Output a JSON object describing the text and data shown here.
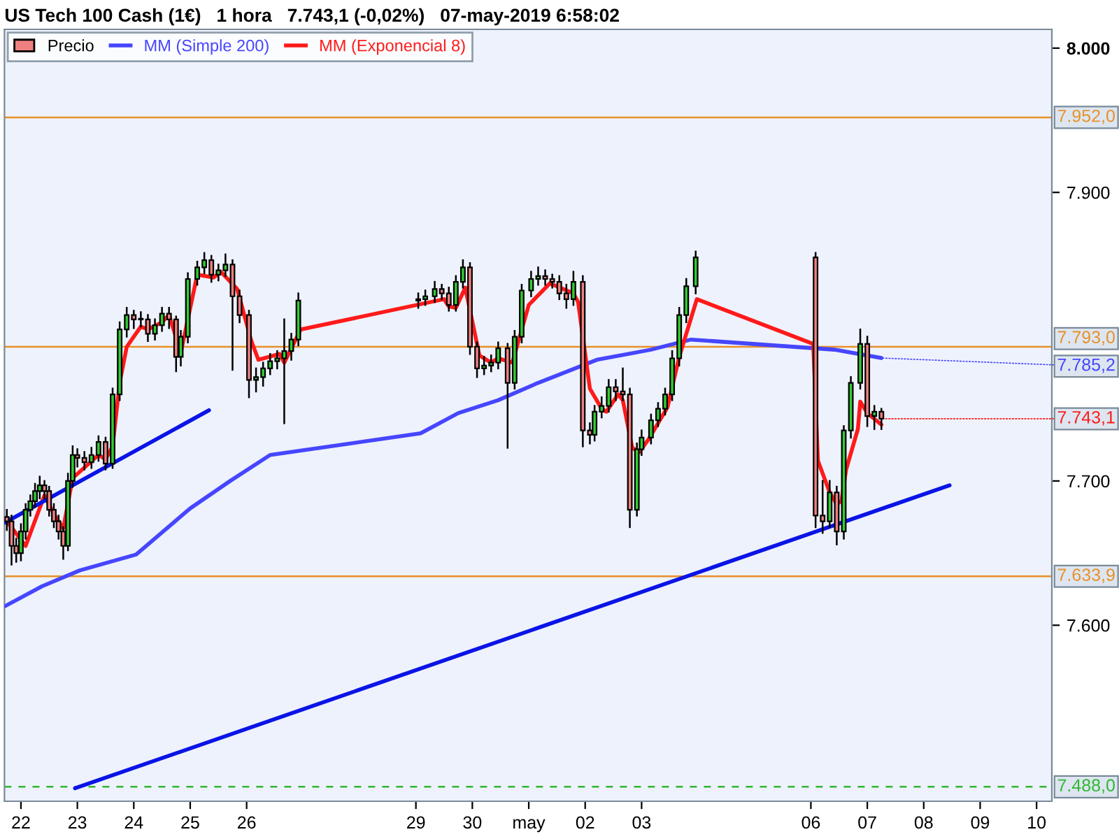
{
  "chart_data": {
    "type": "candlestick",
    "title": "US Tech 100 Cash (1€)   1 hora   7.743,1 (-0,02%)   07-may-2019 6:58:02",
    "xlim": [
      "2019-04-21T17:00",
      "2019-05-10T06:30"
    ],
    "ylim": [
      7478,
      8013
    ],
    "xticks": [
      {
        "value": "2019-04-22",
        "label": "22"
      },
      {
        "value": "2019-04-23",
        "label": "23"
      },
      {
        "value": "2019-04-24",
        "label": "24"
      },
      {
        "value": "2019-04-25",
        "label": "25"
      },
      {
        "value": "2019-04-26",
        "label": "26"
      },
      {
        "value": "2019-04-29",
        "label": "29"
      },
      {
        "value": "2019-04-30",
        "label": "30"
      },
      {
        "value": "2019-05-01",
        "label": "may"
      },
      {
        "value": "2019-05-02",
        "label": "02"
      },
      {
        "value": "2019-05-03",
        "label": "03"
      },
      {
        "value": "2019-05-06",
        "label": "06"
      },
      {
        "value": "2019-05-07",
        "label": "07"
      },
      {
        "value": "2019-05-08",
        "label": "08"
      },
      {
        "value": "2019-05-09",
        "label": "09"
      },
      {
        "value": "2019-05-10",
        "label": "10"
      }
    ],
    "yticks": [
      {
        "value": 8000,
        "label": "8.000"
      },
      {
        "value": 7900,
        "label": "7.900"
      },
      {
        "value": 7700,
        "label": "7.700"
      },
      {
        "value": 7600,
        "label": "7.600"
      }
    ],
    "grid": false,
    "legend": "top left",
    "series": [
      {
        "name": "Precio",
        "colors": [
          "#f08080",
          "#f08080",
          "#f08080",
          "#33cc33",
          "#33cc33",
          "#33cc33",
          "#33cc33",
          "#33cc33",
          "#f08080",
          "#f08080",
          "#f08080",
          "#f08080",
          "#f08080",
          "#33cc33",
          "#33cc33",
          "#f08080",
          "#f08080",
          "#33cc33",
          "#33cc33",
          "#f08080",
          "#33cc33",
          "#33cc33",
          "#33cc33",
          "#f08080",
          "#33cc33",
          "#f08080",
          "#33cc33",
          "#33cc33",
          "#f08080",
          "#f08080",
          "#33cc33",
          "#33cc33",
          "#33cc33",
          "#33cc33",
          "#f08080",
          "#33cc33",
          "#33cc33",
          "#f08080",
          "#f08080",
          "#f08080",
          "#33cc33",
          "#33cc33",
          "#33cc33",
          "#33cc33",
          "#33cc33",
          "#33cc33",
          "#33cc33",
          "#33cc33",
          "#33cc33",
          "#33cc33",
          "#f08080",
          "#f08080",
          "#33cc33",
          "#33cc33",
          "#f08080",
          "#f08080",
          "#33cc33",
          "#33cc33",
          "#33cc33",
          "#f08080",
          "#33cc33",
          "#33cc33",
          "#33cc33",
          "#33cc33",
          "#f08080",
          "#f08080",
          "#f08080",
          "#f08080",
          "#33cc33",
          "#f08080",
          "#f08080",
          "#33cc33",
          "#33cc33",
          "#33cc33",
          "#f08080",
          "#f08080",
          "#f08080",
          "#33cc33",
          "#33cc33",
          "#33cc33",
          "#33cc33",
          "#33cc33",
          "#33cc33",
          "#33cc33",
          "#33cc33",
          "#33cc33",
          "#f08080",
          "#f08080",
          "#33cc33",
          "#f08080",
          "#33cc33",
          "#33cc33",
          "#33cc33",
          "#f08080",
          "#33cc33",
          "#f08080"
        ],
        "x": [
          "2019-04-21T18:00",
          "2019-04-21T20:00",
          "2019-04-21T22:00",
          "2019-04-22T00:00",
          "2019-04-22T02:00",
          "2019-04-22T04:00",
          "2019-04-22T06:00",
          "2019-04-22T08:00",
          "2019-04-22T10:00",
          "2019-04-22T12:00",
          "2019-04-22T14:00",
          "2019-04-22T16:00",
          "2019-04-22T18:00",
          "2019-04-22T20:00",
          "2019-04-22T22:00",
          "2019-04-23T00:00",
          "2019-04-23T03:00",
          "2019-04-23T06:00",
          "2019-04-23T09:00",
          "2019-04-23T12:00",
          "2019-04-23T15:00",
          "2019-04-23T18:00",
          "2019-04-23T21:00",
          "2019-04-24T00:00",
          "2019-04-24T03:00",
          "2019-04-24T06:00",
          "2019-04-24T09:00",
          "2019-04-24T12:00",
          "2019-04-24T15:00",
          "2019-04-24T18:00",
          "2019-04-24T20:00",
          "2019-04-24T23:00",
          "2019-04-25T03:00",
          "2019-04-25T06:00",
          "2019-04-25T09:00",
          "2019-04-25T12:00",
          "2019-04-25T15:00",
          "2019-04-25T18:00",
          "2019-04-25T21:00",
          "2019-04-26T01:00",
          "2019-04-26T04:00",
          "2019-04-26T07:00",
          "2019-04-26T10:00",
          "2019-04-26T13:00",
          "2019-04-26T16:00",
          "2019-04-26T19:00",
          "2019-04-26T22:00",
          "2019-04-29T01:00",
          "2019-04-29T04:00",
          "2019-04-29T08:00",
          "2019-04-29T11:00",
          "2019-04-29T14:00",
          "2019-04-29T17:00",
          "2019-04-29T20:00",
          "2019-04-29T23:00",
          "2019-04-30T02:00",
          "2019-04-30T05:00",
          "2019-04-30T08:00",
          "2019-04-30T11:00",
          "2019-04-30T15:00",
          "2019-04-30T18:00",
          "2019-04-30T21:00",
          "2019-05-01T01:00",
          "2019-05-01T04:00",
          "2019-05-01T07:00",
          "2019-05-01T10:00",
          "2019-05-01T13:00",
          "2019-05-01T16:00",
          "2019-05-01T19:00",
          "2019-05-01T23:00",
          "2019-05-02T02:00",
          "2019-05-02T04:00",
          "2019-05-02T07:00",
          "2019-05-02T10:00",
          "2019-05-02T13:00",
          "2019-05-02T16:00",
          "2019-05-02T19:00",
          "2019-05-02T22:00",
          "2019-05-03T00:00",
          "2019-05-03T04:00",
          "2019-05-03T07:00",
          "2019-05-03T10:00",
          "2019-05-03T13:00",
          "2019-05-03T16:00",
          "2019-05-03T19:00",
          "2019-05-03T23:00",
          "2019-05-06T02:00",
          "2019-05-06T05:00",
          "2019-05-06T08:00",
          "2019-05-06T11:00",
          "2019-05-06T14:00",
          "2019-05-06T17:00",
          "2019-05-06T21:00",
          "2019-05-07T00:00",
          "2019-05-07T03:00",
          "2019-05-07T06:00"
        ],
        "ohlc": [
          [
            7675,
            7680,
            7666,
            7672
          ],
          [
            7672,
            7676,
            7642,
            7655
          ],
          [
            7655,
            7660,
            7644,
            7650
          ],
          [
            7650,
            7670,
            7645,
            7665
          ],
          [
            7665,
            7684,
            7660,
            7680
          ],
          [
            7680,
            7690,
            7676,
            7686
          ],
          [
            7686,
            7698,
            7682,
            7693
          ],
          [
            7693,
            7703,
            7688,
            7697
          ],
          [
            7697,
            7700,
            7688,
            7693
          ],
          [
            7693,
            7696,
            7676,
            7680
          ],
          [
            7680,
            7684,
            7668,
            7672
          ],
          [
            7672,
            7676,
            7660,
            7665
          ],
          [
            7665,
            7668,
            7646,
            7655
          ],
          [
            7655,
            7705,
            7652,
            7700
          ],
          [
            7700,
            7724,
            7696,
            7718
          ],
          [
            7718,
            7722,
            7710,
            7716
          ],
          [
            7716,
            7720,
            7708,
            7713
          ],
          [
            7713,
            7723,
            7709,
            7718
          ],
          [
            7718,
            7731,
            7714,
            7727
          ],
          [
            7727,
            7730,
            7708,
            7712
          ],
          [
            7712,
            7764,
            7709,
            7760
          ],
          [
            7760,
            7810,
            7756,
            7805
          ],
          [
            7805,
            7820,
            7800,
            7815
          ],
          [
            7815,
            7818,
            7806,
            7812
          ],
          [
            7812,
            7817,
            7807,
            7812
          ],
          [
            7812,
            7815,
            7797,
            7802
          ],
          [
            7802,
            7812,
            7798,
            7808
          ],
          [
            7808,
            7820,
            7804,
            7816
          ],
          [
            7816,
            7820,
            7806,
            7812
          ],
          [
            7812,
            7814,
            7776,
            7786
          ],
          [
            7786,
            7804,
            7780,
            7800
          ],
          [
            7800,
            7844,
            7796,
            7840
          ],
          [
            7840,
            7852,
            7836,
            7848
          ],
          [
            7848,
            7858,
            7844,
            7853
          ],
          [
            7853,
            7856,
            7838,
            7843
          ],
          [
            7843,
            7850,
            7839,
            7846
          ],
          [
            7846,
            7857,
            7842,
            7850
          ],
          [
            7850,
            7853,
            7777,
            7828
          ],
          [
            7828,
            7832,
            7810,
            7815
          ],
          [
            7815,
            7818,
            7758,
            7770
          ],
          [
            7770,
            7778,
            7762,
            7772
          ],
          [
            7772,
            7782,
            7766,
            7778
          ],
          [
            7778,
            7788,
            7774,
            7783
          ],
          [
            7783,
            7790,
            7778,
            7785
          ],
          [
            7785,
            7812,
            7740,
            7790
          ],
          [
            7790,
            7802,
            7784,
            7798
          ],
          [
            7798,
            7830,
            7794,
            7825
          ],
          [
            7825,
            7830,
            7820,
            7826
          ],
          [
            7826,
            7832,
            7822,
            7828
          ],
          [
            7828,
            7838,
            7824,
            7833
          ],
          [
            7833,
            7836,
            7826,
            7830
          ],
          [
            7830,
            7834,
            7818,
            7822
          ],
          [
            7822,
            7842,
            7818,
            7838
          ],
          [
            7838,
            7853,
            7834,
            7848
          ],
          [
            7848,
            7851,
            7788,
            7793
          ],
          [
            7793,
            7796,
            7772,
            7778
          ],
          [
            7778,
            7786,
            7774,
            7780
          ],
          [
            7780,
            7787,
            7776,
            7782
          ],
          [
            7782,
            7796,
            7778,
            7792
          ],
          [
            7792,
            7795,
            7723,
            7768
          ],
          [
            7768,
            7804,
            7764,
            7800
          ],
          [
            7800,
            7836,
            7796,
            7832
          ],
          [
            7832,
            7845,
            7828,
            7840
          ],
          [
            7840,
            7848,
            7836,
            7842
          ],
          [
            7842,
            7846,
            7836,
            7840
          ],
          [
            7840,
            7843,
            7834,
            7838
          ],
          [
            7838,
            7842,
            7826,
            7830
          ],
          [
            7830,
            7836,
            7820,
            7826
          ],
          [
            7826,
            7845,
            7822,
            7838
          ],
          [
            7838,
            7842,
            7724,
            7735
          ],
          [
            7735,
            7740,
            7726,
            7732
          ],
          [
            7732,
            7752,
            7728,
            7748
          ],
          [
            7748,
            7758,
            7744,
            7752
          ],
          [
            7752,
            7770,
            7748,
            7765
          ],
          [
            7765,
            7770,
            7756,
            7762
          ],
          [
            7762,
            7778,
            7756,
            7760
          ],
          [
            7760,
            7764,
            7668,
            7680
          ],
          [
            7680,
            7726,
            7676,
            7722
          ],
          [
            7722,
            7735,
            7718,
            7730
          ],
          [
            7730,
            7746,
            7726,
            7742
          ],
          [
            7742,
            7754,
            7738,
            7750
          ],
          [
            7750,
            7764,
            7746,
            7760
          ],
          [
            7760,
            7790,
            7756,
            7785
          ],
          [
            7785,
            7820,
            7780,
            7815
          ],
          [
            7815,
            7840,
            7810,
            7835
          ],
          [
            7835,
            7859,
            7830,
            7855
          ],
          [
            7855,
            7858,
            7668,
            7676
          ],
          [
            7676,
            7700,
            7664,
            7672
          ],
          [
            7672,
            7700,
            7668,
            7692
          ],
          [
            7692,
            7696,
            7656,
            7665
          ],
          [
            7665,
            7738,
            7660,
            7735
          ],
          [
            7735,
            7772,
            7730,
            7768
          ],
          [
            7768,
            7805,
            7764,
            7795
          ],
          [
            7795,
            7800,
            7738,
            7745
          ],
          [
            7745,
            7752,
            7736,
            7748
          ],
          [
            7748,
            7750,
            7736,
            7743.1
          ]
        ]
      },
      {
        "name": "MM (Simple 200)",
        "type": "line",
        "color": "#4646ff",
        "x": [
          "2019-04-21T17:00",
          "2019-04-22T09:00",
          "2019-04-23T01:00",
          "2019-04-24T01:00",
          "2019-04-25T00:00",
          "2019-04-25T17:00",
          "2019-04-26T10:00",
          "2019-04-29T02:00",
          "2019-04-29T18:00",
          "2019-04-30T11:00",
          "2019-05-01T04:00",
          "2019-05-02T05:00",
          "2019-05-03T04:00",
          "2019-05-03T21:00",
          "2019-05-06T10:00",
          "2019-05-07T06:00"
        ],
        "values": [
          7613,
          7627,
          7638,
          7649,
          7681,
          7700,
          7718,
          7733,
          7747,
          7756,
          7768,
          7784,
          7791,
          7798,
          7791,
          7785.2
        ]
      },
      {
        "name": "MM (Exponencial 8)",
        "type": "line",
        "color": "#ff1a1a",
        "x": [
          "2019-04-21T18:00",
          "2019-04-22T02:00",
          "2019-04-22T10:00",
          "2019-04-22T14:00",
          "2019-04-22T18:00",
          "2019-04-22T22:00",
          "2019-04-23T09:00",
          "2019-04-23T12:00",
          "2019-04-23T15:00",
          "2019-04-23T18:00",
          "2019-04-23T21:00",
          "2019-04-24T03:00",
          "2019-04-24T06:00",
          "2019-04-24T12:00",
          "2019-04-24T15:00",
          "2019-04-24T20:00",
          "2019-04-25T03:00",
          "2019-04-25T10:00",
          "2019-04-25T13:00",
          "2019-04-25T20:00",
          "2019-04-26T02:00",
          "2019-04-26T05:00",
          "2019-04-26T14:00",
          "2019-04-26T16:00",
          "2019-04-26T23:00",
          "2019-04-29T12:00",
          "2019-04-29T14:00",
          "2019-04-29T17:00",
          "2019-04-29T21:00",
          "2019-04-30T03:00",
          "2019-04-30T08:00",
          "2019-04-30T11:00",
          "2019-04-30T17:00",
          "2019-05-01T00:00",
          "2019-05-01T09:00",
          "2019-05-01T19:00",
          "2019-05-01T21:00",
          "2019-05-02T02:00",
          "2019-05-02T07:00",
          "2019-05-02T09:00",
          "2019-05-02T14:00",
          "2019-05-02T16:00",
          "2019-05-02T20:00",
          "2019-05-02T23:00",
          "2019-05-03T03:00",
          "2019-05-03T11:00",
          "2019-05-03T16:00",
          "2019-05-03T23:30",
          "2019-05-06T01:00",
          "2019-05-06T03:00",
          "2019-05-06T08:00",
          "2019-05-06T11:00",
          "2019-05-06T13:00",
          "2019-05-06T15:00",
          "2019-05-06T20:00",
          "2019-05-06T21:00",
          "2019-05-07T00:00",
          "2019-05-07T06:00"
        ],
        "values": [
          7672,
          7655,
          7690,
          7677,
          7667,
          7702,
          7718,
          7715,
          7724,
          7768,
          7793,
          7807,
          7805,
          7810,
          7815,
          7789,
          7843,
          7841,
          7845,
          7833,
          7797,
          7784,
          7788,
          7782,
          7805,
          7826,
          7821,
          7820,
          7834,
          7787,
          7782,
          7785,
          7782,
          7822,
          7837,
          7830,
          7824,
          7764,
          7750,
          7748,
          7760,
          7756,
          7723,
          7720,
          7729,
          7751,
          7786,
          7826,
          7795,
          7714,
          7692,
          7684,
          7686,
          7708,
          7736,
          7755,
          7747,
          7739
        ]
      },
      {
        "type": "line",
        "color": "#0a14e6",
        "x": [
          "2019-04-21T17:00",
          "2019-04-25T08:00"
        ],
        "values": [
          7671,
          7749
        ]
      },
      {
        "type": "line",
        "color": "#0a14e6",
        "x": [
          "2019-04-22T23:00",
          "2019-05-08T11:00"
        ],
        "values": [
          7487,
          7697
        ]
      }
    ],
    "ref_lines": [
      {
        "axis": "y",
        "value": 7952.0,
        "label": "7.952,0",
        "color": "#e8902a"
      },
      {
        "axis": "y",
        "value": 7793.0,
        "label": "7.793,0",
        "color": "#e8902a"
      },
      {
        "axis": "y",
        "value": 7633.9,
        "label": "7.633,9",
        "color": "#e8902a"
      },
      {
        "axis": "y",
        "value": 7488.0,
        "label": "7.488,0",
        "color": "#2fb82f",
        "line_style": "dashed"
      }
    ],
    "annotations": [
      {
        "text": "7.785,2",
        "x": "2019-05-07T06:00",
        "y": 7785.2
      },
      {
        "text": "7.743,1",
        "x": "2019-05-07T06:00",
        "y": 7743.1
      }
    ]
  }
}
